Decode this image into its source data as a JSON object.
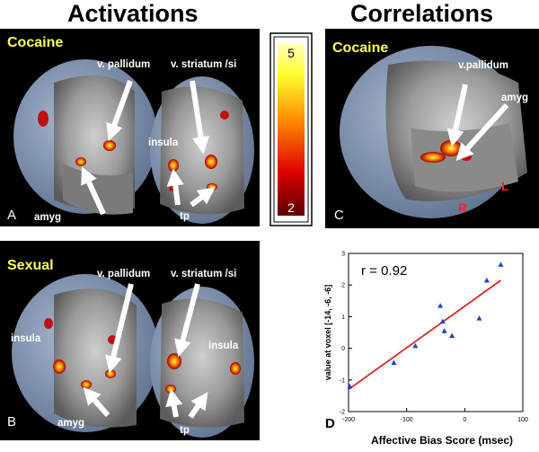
{
  "headings": {
    "left": "Activations",
    "right": "Correlations"
  },
  "panel_a": {
    "title": "Cocaine",
    "letter": "A",
    "labels": {
      "pallidum": "v. pallidum",
      "striatum": "v. striatum /si",
      "insula": "insula",
      "amyg": "amyg",
      "tp": "tp"
    }
  },
  "panel_b": {
    "title": "Sexual",
    "letter": "B",
    "labels": {
      "pallidum": "v. pallidum",
      "striatum": "v. striatum /si",
      "insula_left": "insula",
      "insula_right": "insula",
      "amyg": "amyg",
      "tp": "tp"
    }
  },
  "panel_c": {
    "title": "Cocaine",
    "letter": "C",
    "labels": {
      "pallidum": "v.pallidum",
      "amyg": "amyg",
      "r": "R",
      "l": "L"
    }
  },
  "colorbar": {
    "max_label": "5",
    "min_label": "2"
  },
  "panel_d": {
    "letter": "D",
    "annotation": "r = 0.92"
  },
  "chart_data": {
    "type": "scatter",
    "xlabel": "Affective Bias Score (msec)",
    "ylabel": "value at voxel [-14, -6, -6]",
    "xlim": [
      -200,
      100
    ],
    "ylim": [
      -2,
      3
    ],
    "xticks": [
      -200,
      -100,
      0,
      100
    ],
    "xtick_labels": [
      "-200",
      "-100",
      "0",
      "100"
    ],
    "yticks": [
      -2,
      -1,
      0,
      1,
      2,
      3
    ],
    "ytick_labels": [
      "-2",
      "-1",
      "0",
      "1",
      "2",
      "3"
    ],
    "grid": false,
    "marker_color": "#1a3fd6",
    "line_color": "#e01010",
    "points": [
      {
        "x": -198,
        "y": -1.2
      },
      {
        "x": -122,
        "y": -0.45
      },
      {
        "x": -85,
        "y": 0.08
      },
      {
        "x": -42,
        "y": 1.35
      },
      {
        "x": -38,
        "y": 0.85
      },
      {
        "x": -35,
        "y": 0.55
      },
      {
        "x": -22,
        "y": 0.4
      },
      {
        "x": 25,
        "y": 0.95
      },
      {
        "x": 38,
        "y": 2.15
      },
      {
        "x": 62,
        "y": 2.65
      }
    ],
    "fit_line": {
      "x": [
        -200,
        62
      ],
      "y": [
        -1.3,
        2.15
      ]
    }
  }
}
